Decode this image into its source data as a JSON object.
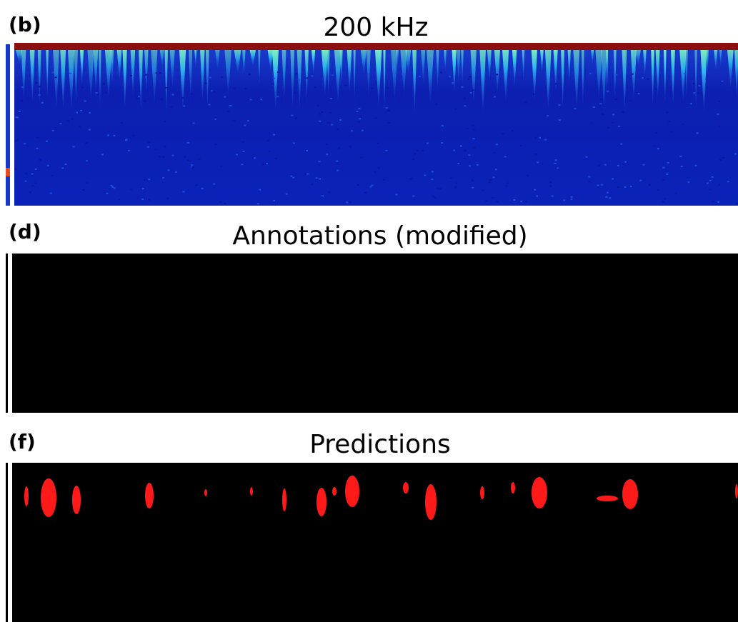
{
  "panels": [
    {
      "label": "(b)",
      "title": "200 kHz"
    },
    {
      "label": "(d)",
      "title": "Annotations (modified)"
    },
    {
      "label": "(f)",
      "title": "Predictions"
    }
  ]
}
